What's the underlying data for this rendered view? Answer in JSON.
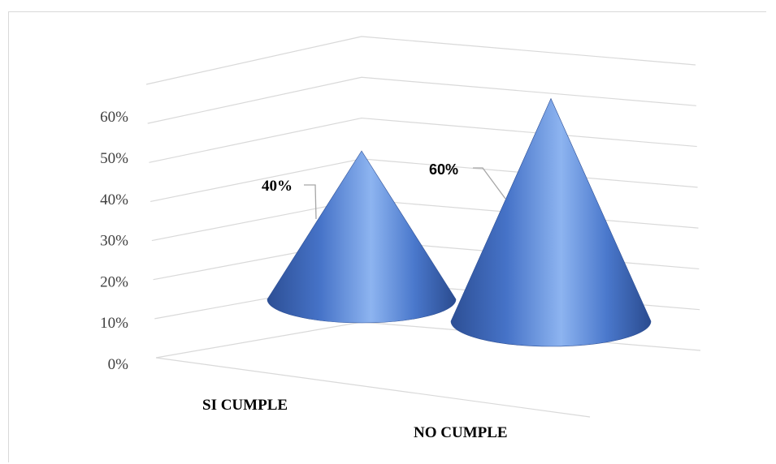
{
  "chart_data": {
    "type": "bar",
    "subtype": "3d-cone",
    "categories": [
      "SI CUMPLE",
      "NO CUMPLE"
    ],
    "values": [
      0.4,
      0.6
    ],
    "data_labels": [
      "40%",
      "60%"
    ],
    "ytick_labels": [
      "0%",
      "10%",
      "20%",
      "30%",
      "40%",
      "50%",
      "60%"
    ],
    "ylim": [
      0,
      0.7
    ],
    "grid": true,
    "legend": "none",
    "title": "",
    "xlabel": "",
    "ylabel": "",
    "colors": {
      "cone_base": "#4472c4",
      "cone_light": "#8db4f0",
      "cone_dark": "#2d4f95",
      "gridline": "#d9d9d9"
    }
  }
}
